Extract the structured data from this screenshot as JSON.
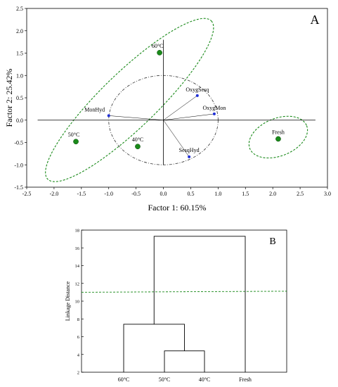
{
  "chart_data": [
    {
      "type": "scatter",
      "panel_label": "A",
      "xlabel": "Factor 1: 60.15%",
      "ylabel": "Factor 2: 25.42%",
      "xlim": [
        -2.5,
        3.0
      ],
      "ylim": [
        -1.5,
        2.5
      ],
      "x_ticks": [
        "-2.5",
        "-2.0",
        "-1.5",
        "-1.0",
        "-0.5",
        "0.0",
        "0.5",
        "1.0",
        "1.5",
        "2.0",
        "2.5",
        "3.0"
      ],
      "y_ticks": [
        "2.5",
        "2.0",
        "1.5",
        "1.0",
        "0.5",
        "0.0",
        "-0.5",
        "-1.0",
        "-1.5"
      ],
      "colors": {
        "samples": "#1a8a1a",
        "loadings": "#1f2fd6",
        "ellipse": "#1a8a1a"
      },
      "samples": [
        {
          "label": "60°C",
          "x": -0.07,
          "y": 1.51
        },
        {
          "label": "50°C",
          "x": -1.6,
          "y": -0.48
        },
        {
          "label": "40°C",
          "x": -0.47,
          "y": -0.59
        },
        {
          "label": "Fresh",
          "x": 2.1,
          "y": -0.42
        }
      ],
      "loadings": [
        {
          "label": "MonHyd",
          "x": -1.0,
          "y": 0.1
        },
        {
          "label": "OxygSesq",
          "x": 0.62,
          "y": 0.55
        },
        {
          "label": "OxygMon",
          "x": 0.93,
          "y": 0.14
        },
        {
          "label": "SesqHyd",
          "x": 0.47,
          "y": -0.82
        }
      ]
    },
    {
      "type": "dendrogram",
      "panel_label": "B",
      "ylabel": "Linkage Distance",
      "ylim": [
        2,
        18
      ],
      "y_ticks": [
        "18",
        "16",
        "14",
        "12",
        "10",
        "8",
        "6",
        "4",
        "2"
      ],
      "leaves": [
        "60°C",
        "50°C",
        "40°C",
        "Fresh"
      ],
      "merges": [
        {
          "left": "50°C",
          "right": "40°C",
          "height": 4.4
        },
        {
          "left": "60°C",
          "right": "50°C,40°C",
          "height": 7.4
        },
        {
          "left": "60°C,50°C,40°C",
          "right": "Fresh",
          "height": 17.3
        }
      ],
      "cut_line": 11.0,
      "colors": {
        "cut_line": "#1a8a1a"
      }
    }
  ]
}
